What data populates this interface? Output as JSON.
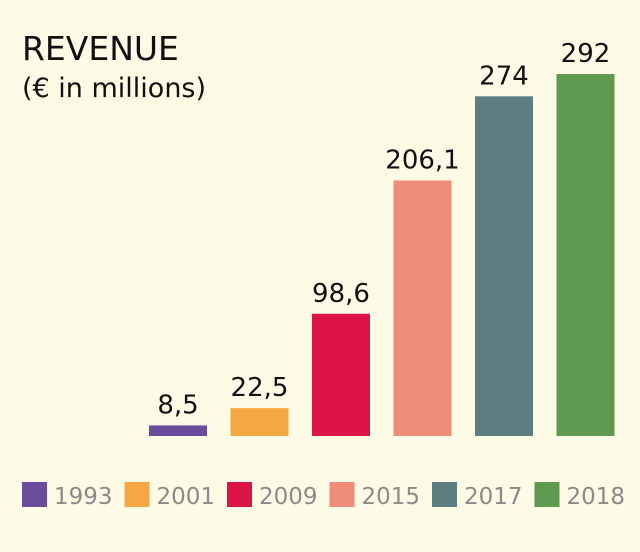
{
  "chart_data": {
    "type": "bar",
    "title": "REVENUE",
    "subtitle": "(€ in millions)",
    "categories": [
      "1993",
      "2001",
      "2009",
      "2015",
      "2017",
      "2018"
    ],
    "values": [
      8.5,
      22.5,
      98.6,
      206.1,
      274,
      292
    ],
    "value_labels": [
      "8,5",
      "22,5",
      "98,6",
      "206,1",
      "274",
      "292"
    ],
    "colors": [
      "#6a4c9c",
      "#f5a742",
      "#dc1448",
      "#f08c7a",
      "#5f7e82",
      "#5f9a50"
    ],
    "ylim": [
      0,
      292
    ],
    "grid": false,
    "legend": "bottom"
  }
}
